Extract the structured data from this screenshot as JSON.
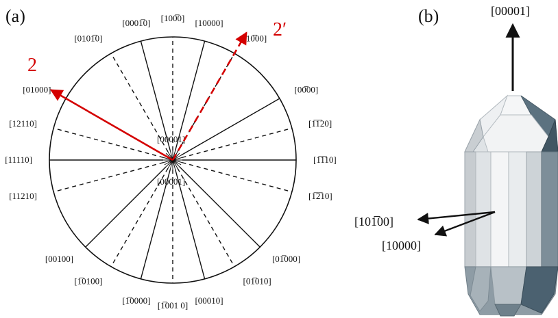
{
  "panel_a": {
    "label": "(a)",
    "outer_directions": [
      {
        "angle": 90,
        "style": "dashed",
        "label": "[100̅0]"
      },
      {
        "angle": 75,
        "style": "solid",
        "label": "[10000]"
      },
      {
        "angle": 60,
        "style": "dashed",
        "label": "[10̅00]"
      },
      {
        "angle": 30,
        "style": "solid",
        "label": "[00̅00]"
      },
      {
        "angle": 15,
        "style": "dashed",
        "label": "[1̅1̅20]"
      },
      {
        "angle": 0,
        "style": "solid",
        "label": "[1̅1̅10]"
      },
      {
        "angle": -15,
        "style": "dashed",
        "label": "[1̅2̅10]"
      },
      {
        "angle": -45,
        "style": "solid",
        "label": "[01̅000]"
      },
      {
        "angle": -60,
        "style": "dashed",
        "label": "[01̅010]"
      },
      {
        "angle": -75,
        "style": "solid",
        "label": "[00010]"
      },
      {
        "angle": -90,
        "style": "dashed",
        "label": "[1̅001 0]"
      },
      {
        "angle": -105,
        "style": "solid",
        "label": "[1̅0000]"
      },
      {
        "angle": -120,
        "style": "dashed",
        "label": "[1̅0100]"
      },
      {
        "angle": -135,
        "style": "solid",
        "label": "[00100]"
      },
      {
        "angle": -165,
        "style": "dashed",
        "label": "[11210]"
      },
      {
        "angle": 180,
        "style": "solid",
        "label": "[11110]"
      },
      {
        "angle": 165,
        "style": "dashed",
        "label": "[12110]"
      },
      {
        "angle": 150,
        "style": "solid",
        "label": "[01000]"
      },
      {
        "angle": 120,
        "style": "dashed",
        "label": "[0101̅0]"
      },
      {
        "angle": 105,
        "style": "solid",
        "label": "[0001̅0]"
      }
    ],
    "center_top_label": "[00001]",
    "center_bottom_label": "[00001]",
    "arrow_2": {
      "label": "2",
      "angle": 150,
      "style": "solid"
    },
    "arrow_2prime": {
      "label": "2′",
      "angle": 60,
      "style": "dashed"
    }
  },
  "panel_b": {
    "label": "(b)",
    "top_direction_label": "[00001]",
    "side_label_1": "[101̅00]",
    "side_label_2": "[10000]"
  },
  "colors": {
    "ink": "#111111",
    "red": "#d40000",
    "crystal_light": "#e8eaec",
    "crystal_mid": "#c3c9ce",
    "crystal_dark": "#4f6470"
  }
}
